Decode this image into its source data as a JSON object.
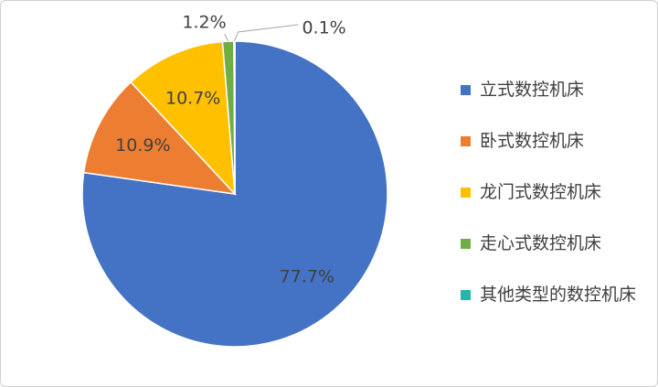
{
  "chart_data": {
    "type": "pie",
    "categories": [
      "立式数控机床",
      "卧式数控机床",
      "龙门式数控机床",
      "走心式数控机床",
      "其他类型的数控机床"
    ],
    "values": [
      77.7,
      10.9,
      10.7,
      1.2,
      0.1
    ],
    "value_labels": [
      "77.7%",
      "10.9%",
      "10.7%",
      "1.2%",
      "0.1%"
    ],
    "colors": [
      "#4472c4",
      "#ed7d31",
      "#ffc000",
      "#70ad47",
      "#25b5ad"
    ],
    "legend": "right"
  }
}
